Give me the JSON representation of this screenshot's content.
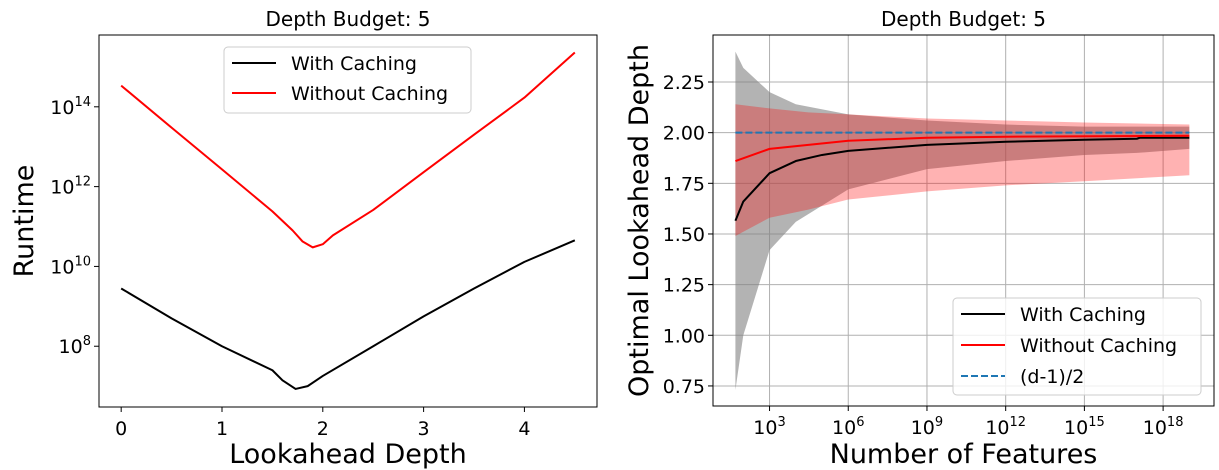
{
  "chart_data": [
    {
      "type": "line",
      "title": "Depth Budget: 5",
      "xlabel": "Lookahead Depth",
      "ylabel": "Runtime",
      "xlim": [
        -0.22,
        4.72
      ],
      "ylim": [
        3000000.0,
        6300000000000000.0
      ],
      "yscale": "log",
      "grid": false,
      "legend_position": "top-center",
      "x_ticks": [
        {
          "label": "0",
          "value": 0
        },
        {
          "label": "1",
          "value": 1
        },
        {
          "label": "2",
          "value": 2
        },
        {
          "label": "3",
          "value": 3
        },
        {
          "label": "4",
          "value": 4
        }
      ],
      "y_ticks": [
        {
          "base": "10",
          "exp": "8",
          "value": 100000000.0
        },
        {
          "base": "10",
          "exp": "10",
          "value": 10000000000.0
        },
        {
          "base": "10",
          "exp": "12",
          "value": 1000000000000.0
        },
        {
          "base": "10",
          "exp": "14",
          "value": 100000000000000.0
        }
      ],
      "series": [
        {
          "name": "With Caching",
          "color": "#000000",
          "x": [
            0,
            0.5,
            1,
            1.5,
            1.6,
            1.73,
            1.85,
            2,
            2.5,
            3,
            3.5,
            4,
            4.5
          ],
          "y": [
            2800000000.0,
            500000000.0,
            100000000.0,
            25000000.0,
            14000000.0,
            8500000.0,
            10000000.0,
            18000000.0,
            100000000.0,
            560000000.0,
            2800000000.0,
            13000000000.0,
            45000000000.0
          ]
        },
        {
          "name": "Without Caching",
          "color": "#ff0000",
          "x": [
            0,
            0.5,
            1,
            1.5,
            1.7,
            1.8,
            1.9,
            2.0,
            2.1,
            2.5,
            3,
            3.5,
            4,
            4.5
          ],
          "y": [
            340000000000000.0,
            30000000000000.0,
            2700000000000.0,
            240000000000.0,
            80000000000.0,
            42000000000.0,
            30000000000.0,
            36000000000.0,
            60000000000.0,
            260000000000.0,
            2300000000000.0,
            20000000000000.0,
            170000000000000.0,
            2300000000000000.0
          ]
        }
      ]
    },
    {
      "type": "line",
      "title": "Depth Budget: 5",
      "xlabel": "Number of Features",
      "ylabel": "Optimal Lookahead Depth",
      "xscale": "log",
      "xlim": [
        7,
        8.7e+19
      ],
      "ylim": [
        0.651,
        2.482
      ],
      "grid": true,
      "legend_position": "bottom-right",
      "x_ticks": [
        {
          "base": "10",
          "exp": "3",
          "value": 1000.0
        },
        {
          "base": "10",
          "exp": "6",
          "value": 1000000.0
        },
        {
          "base": "10",
          "exp": "9",
          "value": 1000000000.0
        },
        {
          "base": "10",
          "exp": "12",
          "value": 1000000000000.0
        },
        {
          "base": "10",
          "exp": "15",
          "value": 1000000000000000.0
        },
        {
          "base": "10",
          "exp": "18",
          "value": 1e+18
        }
      ],
      "y_ticks": [
        {
          "label": "0.75",
          "value": 0.75
        },
        {
          "label": "1.00",
          "value": 1.0
        },
        {
          "label": "1.25",
          "value": 1.25
        },
        {
          "label": "1.50",
          "value": 1.5
        },
        {
          "label": "1.75",
          "value": 1.75
        },
        {
          "label": "2.00",
          "value": 2.0
        },
        {
          "label": "2.25",
          "value": 2.25
        }
      ],
      "bands": [
        {
          "of": "With Caching",
          "color": "#808080",
          "opacity": 0.6,
          "x": [
            50,
            100,
            1000.0,
            10000.0,
            1000000.0,
            1000000000.0,
            1000000000000.0,
            1000000000000000.0,
            1e+17,
            1e+19
          ],
          "lower": [
            0.73,
            1.0,
            1.42,
            1.56,
            1.72,
            1.82,
            1.86,
            1.89,
            1.9,
            1.92
          ],
          "upper": [
            2.4,
            2.32,
            2.2,
            2.14,
            2.09,
            2.06,
            2.04,
            2.03,
            2.03,
            2.03
          ]
        },
        {
          "of": "Without Caching",
          "color": "#ff0000",
          "opacity": 0.3,
          "x": [
            50,
            1000.0,
            30000.0,
            1000000.0,
            1000000000.0,
            1000000000000.0,
            1000000000000000.0,
            1e+19
          ],
          "lower": [
            1.49,
            1.58,
            1.62,
            1.67,
            1.71,
            1.74,
            1.76,
            1.79
          ],
          "upper": [
            2.14,
            2.12,
            2.1,
            2.09,
            2.07,
            2.06,
            2.05,
            2.04
          ]
        }
      ],
      "series": [
        {
          "name": "With Caching",
          "color": "#000000",
          "style": "solid",
          "x": [
            50,
            100,
            1000.0,
            10000.0,
            100000.0,
            1000000.0,
            1000000000.0,
            1000000000000.0,
            1000000000000000.0,
            1e+17,
            1.3e+17,
            1e+19
          ],
          "y": [
            1.565,
            1.66,
            1.8,
            1.86,
            1.89,
            1.91,
            1.94,
            1.955,
            1.965,
            1.97,
            1.975,
            1.975
          ]
        },
        {
          "name": "Without Caching",
          "color": "#ff0000",
          "style": "solid",
          "x": [
            50,
            1000.0,
            30000.0,
            1000000.0,
            1000000000.0,
            1000000000000.0,
            1e+19
          ],
          "y": [
            1.86,
            1.92,
            1.94,
            1.96,
            1.975,
            1.98,
            1.985
          ]
        },
        {
          "name": "(d-1)/2",
          "color": "#1f77b4",
          "style": "dashed",
          "x": [
            50,
            1e+19
          ],
          "y": [
            2.0,
            2.0
          ]
        }
      ]
    }
  ]
}
